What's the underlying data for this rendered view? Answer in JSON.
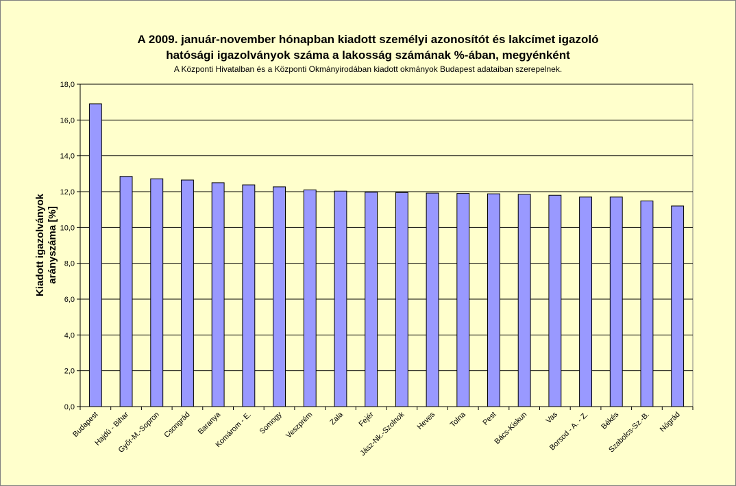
{
  "chart_data": {
    "type": "bar",
    "title_line1": "A 2009. január-november hónapban kiadott személyi azonosítót és lakcímet igazoló",
    "title_line2": "hatósági igazolványok száma a lakosság  számának %-ában, megyénként",
    "subtitle": "A Központi Hivatalban és a Központi Okmányirodában kiadott okmányok Budapest adataiban szerepelnek.",
    "ylabel_line1": "Kiadott igazolványok",
    "ylabel_line2": "arányszáma [%]",
    "xlabel": "",
    "ylim": [
      0,
      18
    ],
    "ytick_step": 2,
    "ytick_labels": [
      "0,0",
      "2,0",
      "4,0",
      "6,0",
      "8,0",
      "10,0",
      "12,0",
      "14,0",
      "16,0",
      "18,0"
    ],
    "grid": true,
    "legend": "none",
    "bar_color": "#9999ff",
    "plot_background": "#ffffcc",
    "categories": [
      "Budapest",
      "Hajdú - Bihar",
      "Győr-M.-Sopron",
      "Csongrád",
      "Baranya",
      "Komárom - E.",
      "Somogy",
      "Veszprém",
      "Zala",
      "Fejér",
      "Jász-Nk.-Szolnok",
      "Heves",
      "Tolna",
      "Pest",
      "Bács-Kiskun",
      "Vas",
      "Borsod - A. - Z.",
      "Békés",
      "Szabolcs-Sz.-B.",
      "Nógrád"
    ],
    "values": [
      16.9,
      12.85,
      12.72,
      12.65,
      12.5,
      12.38,
      12.27,
      12.1,
      12.03,
      11.97,
      11.95,
      11.92,
      11.9,
      11.88,
      11.85,
      11.8,
      11.7,
      11.7,
      11.48,
      11.2
    ]
  }
}
